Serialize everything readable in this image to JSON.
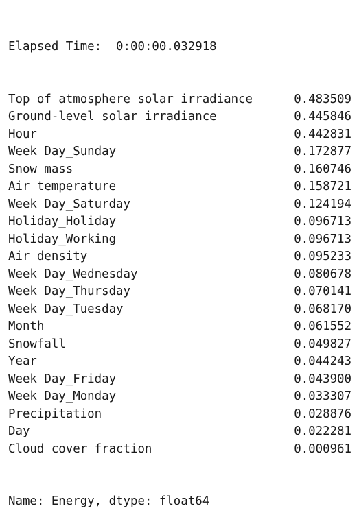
{
  "elapsed": "Elapsed Time:  0:00:00.032918",
  "series": [
    {
      "name": "Top of atmosphere solar irradiance",
      "value": "0.483509"
    },
    {
      "name": "Ground-level solar irradiance",
      "value": "0.445846"
    },
    {
      "name": "Hour",
      "value": "0.442831"
    },
    {
      "name": "Week Day_Sunday",
      "value": "0.172877"
    },
    {
      "name": "Snow mass",
      "value": "0.160746"
    },
    {
      "name": "Air temperature",
      "value": "0.158721"
    },
    {
      "name": "Week Day_Saturday",
      "value": "0.124194"
    },
    {
      "name": "Holiday_Holiday",
      "value": "0.096713"
    },
    {
      "name": "Holiday_Working",
      "value": "0.096713"
    },
    {
      "name": "Air density",
      "value": "0.095233"
    },
    {
      "name": "Week Day_Wednesday",
      "value": "0.080678"
    },
    {
      "name": "Week Day_Thursday",
      "value": "0.070141"
    },
    {
      "name": "Week Day_Tuesday",
      "value": "0.068170"
    },
    {
      "name": "Month",
      "value": "0.061552"
    },
    {
      "name": "Snowfall",
      "value": "0.049827"
    },
    {
      "name": "Year",
      "value": "0.044243"
    },
    {
      "name": "Week Day_Friday",
      "value": "0.043900"
    },
    {
      "name": "Week Day_Monday",
      "value": "0.033307"
    },
    {
      "name": "Precipitation",
      "value": "0.028876"
    },
    {
      "name": "Day",
      "value": "0.022281"
    },
    {
      "name": "Cloud cover fraction",
      "value": "0.000961"
    }
  ],
  "footer": "Name: Energy, dtype: float64"
}
